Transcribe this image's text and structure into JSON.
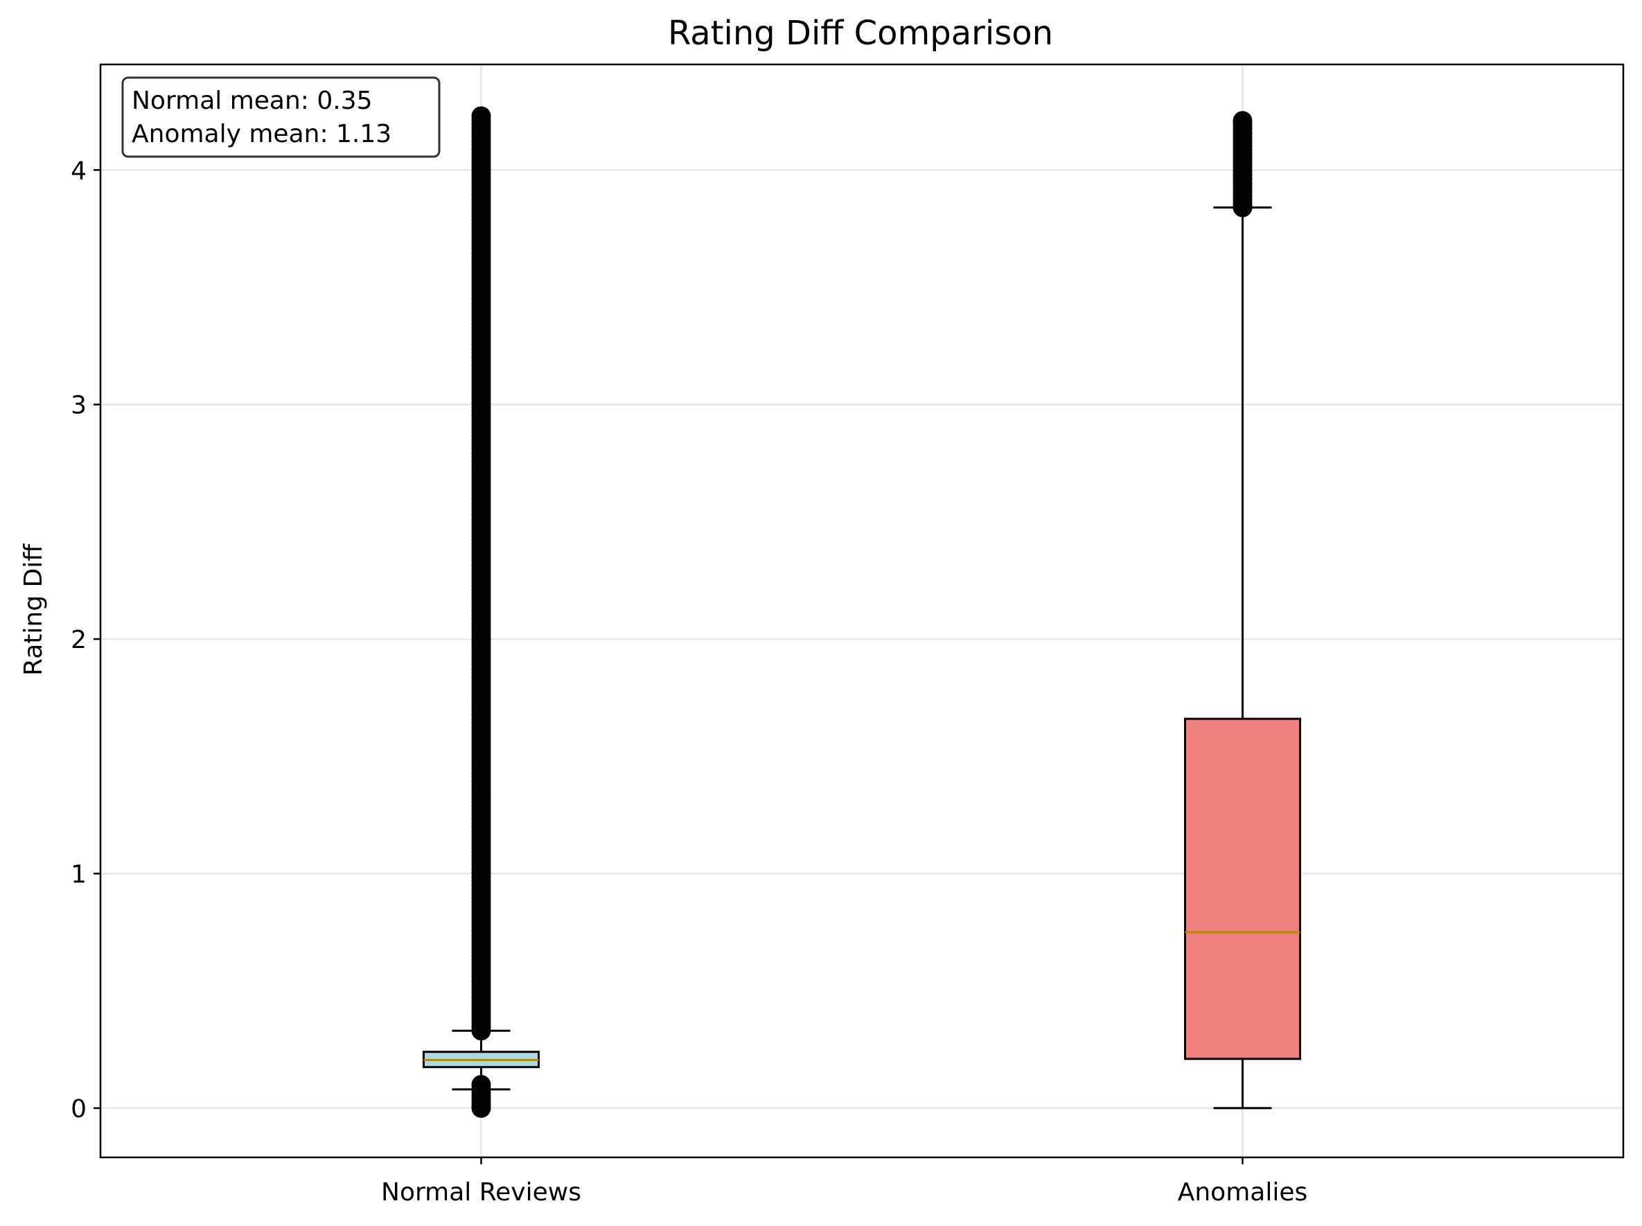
{
  "chart_data": {
    "type": "box",
    "title": "Rating Diff Comparison",
    "xlabel": "",
    "ylabel": "Rating Diff",
    "ylim": [
      -0.21,
      4.45
    ],
    "yticks": [
      0,
      1,
      2,
      3,
      4
    ],
    "grid": true,
    "categories": [
      "Normal Reviews",
      "Anomalies"
    ],
    "boxes": [
      {
        "category": "Normal Reviews",
        "color": "#add8e6",
        "whisker_low": 0.08,
        "q1": 0.175,
        "median": 0.205,
        "q3": 0.24,
        "whisker_high": 0.33,
        "outliers_low_range": [
          0.0,
          0.1
        ],
        "outliers_high_range": [
          0.33,
          4.23
        ]
      },
      {
        "category": "Anomalies",
        "color": "#f08080",
        "whisker_low": 0.0,
        "q1": 0.21,
        "median": 0.75,
        "q3": 1.66,
        "whisker_high": 3.84,
        "outliers_low_range": null,
        "outliers_high_range": [
          3.84,
          4.21
        ]
      }
    ],
    "median_color": "#b8860b",
    "stats_box": {
      "lines": [
        "Normal mean: 0.35",
        "Anomaly mean: 1.13"
      ],
      "placement": "top-left"
    }
  }
}
